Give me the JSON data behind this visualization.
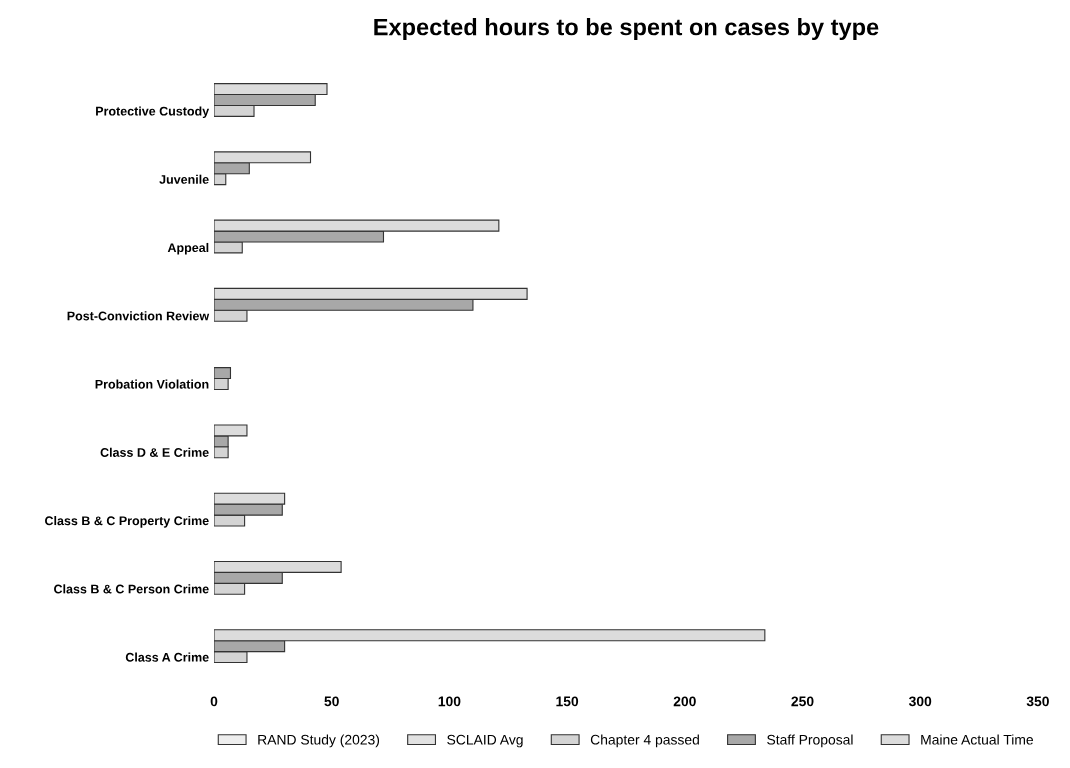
{
  "chart_data": {
    "type": "bar",
    "orientation": "horizontal",
    "title": "Expected hours to be spent on cases by type",
    "categories": [
      "Protective Custody",
      "Juvenile",
      "Appeal",
      "Post-Conviction Review",
      "Probation Violation",
      "Class D & E Crime",
      "Class B & C Property Crime",
      "Class B & C Person Crime",
      "Class A Crime"
    ],
    "series": [
      {
        "name": "RAND Study (2023)",
        "color": "#eeeeee",
        "values": [
          null,
          null,
          null,
          null,
          null,
          null,
          null,
          null,
          null
        ]
      },
      {
        "name": "SCLAID Avg",
        "color": "#e2e2e2",
        "values": [
          null,
          null,
          null,
          null,
          null,
          null,
          null,
          null,
          null
        ]
      },
      {
        "name": "Chapter 4 passed",
        "color": "#d4d4d4",
        "values": [
          17,
          5,
          12,
          14,
          6,
          6,
          13,
          13,
          14
        ]
      },
      {
        "name": "Staff Proposal",
        "color": "#a8a8a8",
        "values": [
          43,
          15,
          72,
          110,
          7,
          6,
          29,
          29,
          30
        ]
      },
      {
        "name": "Maine Actual Time",
        "color": "#dcdcdc",
        "values": [
          48,
          41,
          121,
          133,
          null,
          14,
          30,
          54,
          234
        ]
      }
    ],
    "xlim": [
      0,
      350
    ],
    "xticks": [
      0,
      50,
      100,
      150,
      200,
      250,
      300,
      350
    ],
    "legend": "bottom",
    "grid": false
  }
}
